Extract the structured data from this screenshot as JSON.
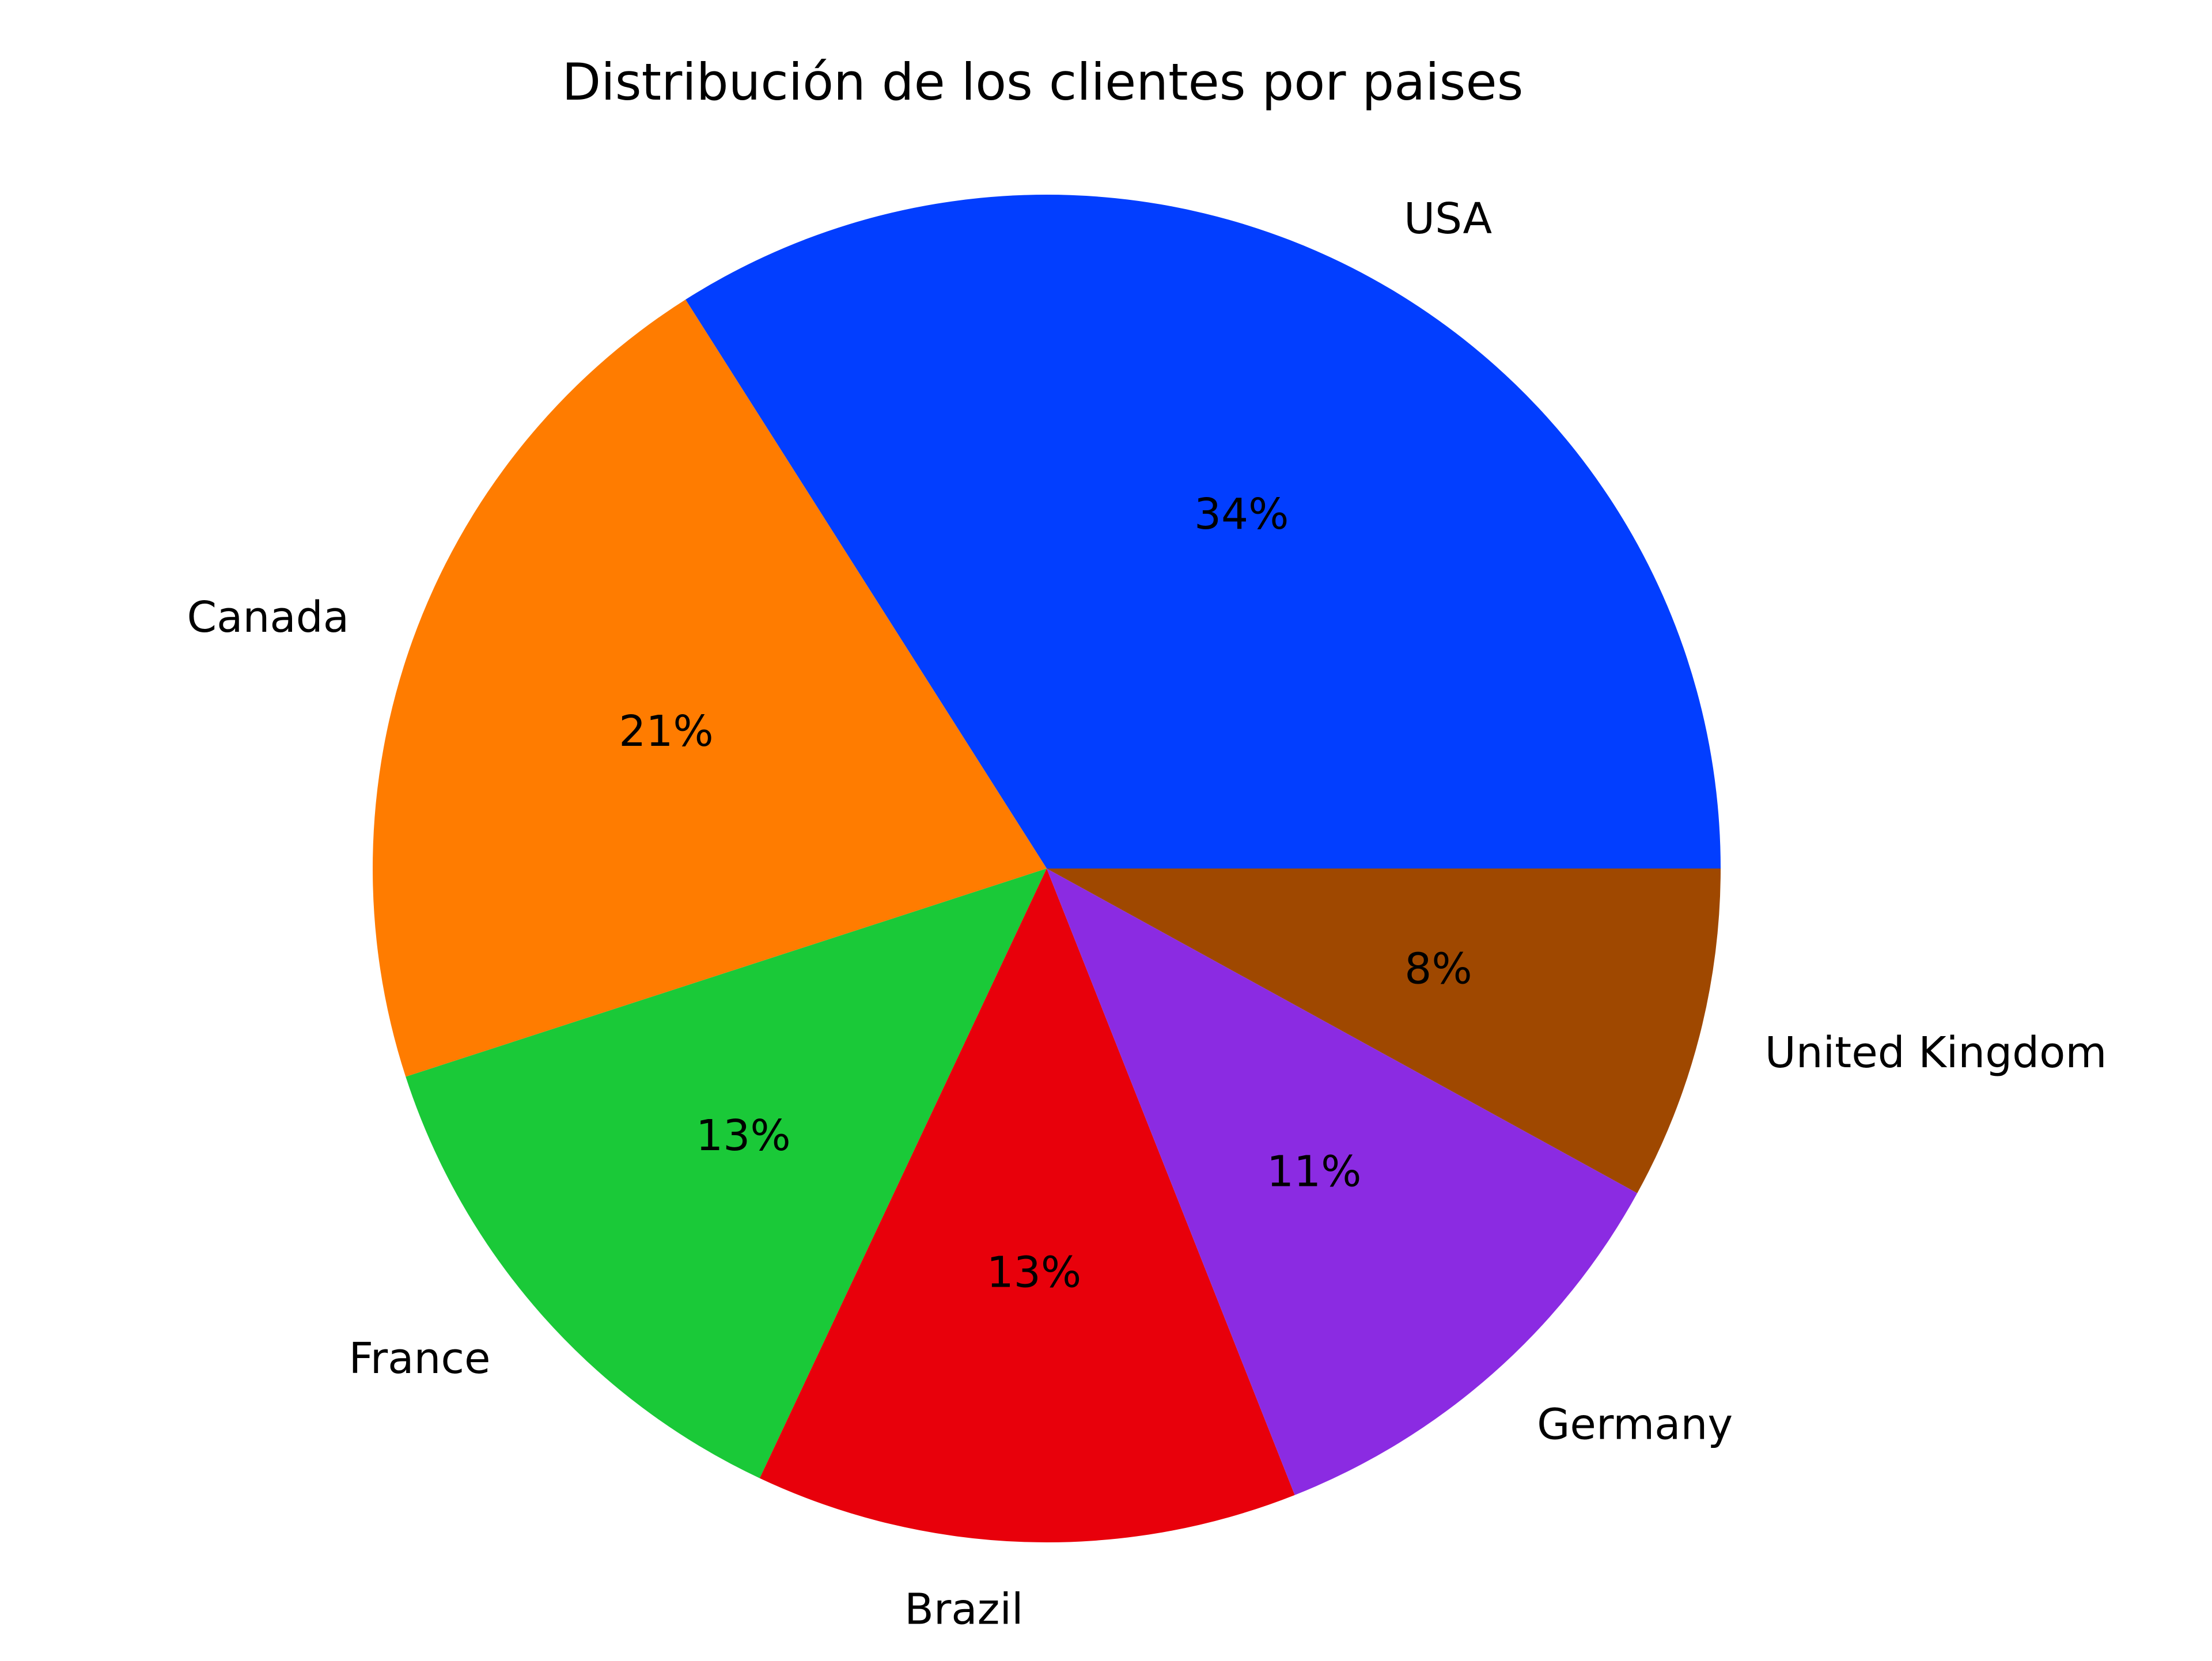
{
  "chart_data": {
    "type": "pie",
    "title": "Distribución de los clientes por paises",
    "categories": [
      "USA",
      "Canada",
      "France",
      "Brazil",
      "Germany",
      "United Kingdom"
    ],
    "values": [
      34,
      21,
      13,
      13,
      11,
      8
    ],
    "percent_labels": [
      "34%",
      "21%",
      "13%",
      "13%",
      "11%",
      "8%"
    ],
    "colors": [
      "#023eff",
      "#ff7c00",
      "#1ac938",
      "#e8000b",
      "#8b2be2",
      "#9f4800"
    ],
    "start_angle": 0,
    "direction": "counterclockwise",
    "legend": "none",
    "grid": false
  }
}
